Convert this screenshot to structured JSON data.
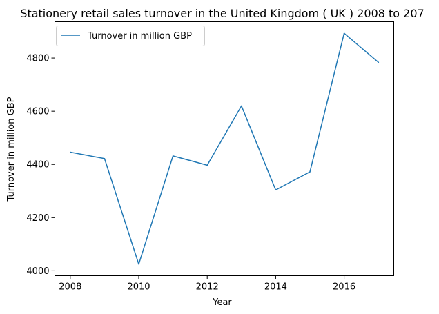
{
  "chart_data": {
    "type": "line",
    "title": "Stationery retail sales turnover in the United Kingdom ( UK ) 2008 to 207",
    "xlabel": "Year",
    "ylabel": "Turnover in million GBP",
    "x": [
      2008,
      2009,
      2010,
      2011,
      2012,
      2013,
      2014,
      2015,
      2016,
      2017
    ],
    "series": [
      {
        "name": "Turnover in million GBP",
        "color": "#1f77b4",
        "values": [
          4446,
          4422,
          4025,
          4432,
          4397,
          4620,
          4304,
          4372,
          4893,
          4784
        ]
      }
    ],
    "xlim": [
      2007.55,
      2017.45
    ],
    "ylim": [
      3981.6,
      4936.4
    ],
    "xticks": [
      "2008",
      "2010",
      "2012",
      "2014",
      "2016"
    ],
    "yticks": [
      "4000",
      "4200",
      "4400",
      "4600",
      "4800"
    ],
    "grid": false,
    "legend_position": "top-left"
  }
}
